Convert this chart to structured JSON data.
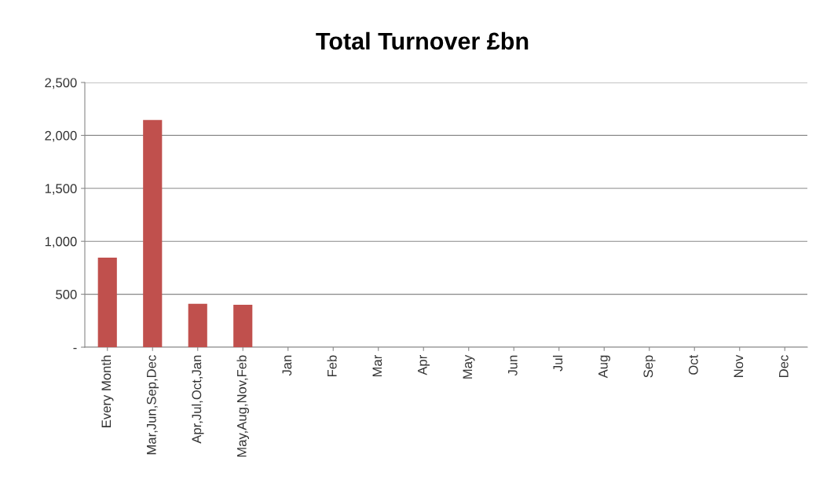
{
  "chart_data": {
    "type": "bar",
    "title": "Total Turnover £bn",
    "categories": [
      "Every Month",
      "Mar,Jun,Sep,Dec",
      "Apr,Jul,Oct,Jan",
      "May,Aug,Nov,Feb",
      "Jan",
      "Feb",
      "Mar",
      "Apr",
      "May",
      "Jun",
      "Jul",
      "Aug",
      "Sep",
      "Oct",
      "Nov",
      "Dec"
    ],
    "values": [
      845,
      2145,
      410,
      400,
      0,
      0,
      0,
      0,
      0,
      0,
      0,
      0,
      0,
      0,
      0,
      0
    ],
    "color": "#c0504d",
    "ylim": [
      0,
      2500
    ],
    "yticks": [
      {
        "value": 0,
        "label": "-"
      },
      {
        "value": 500,
        "label": "500"
      },
      {
        "value": 1000,
        "label": "1,000"
      },
      {
        "value": 1500,
        "label": "1,500"
      },
      {
        "value": 2000,
        "label": "2,000"
      },
      {
        "value": 2500,
        "label": "2,500"
      }
    ],
    "grid": "y"
  }
}
